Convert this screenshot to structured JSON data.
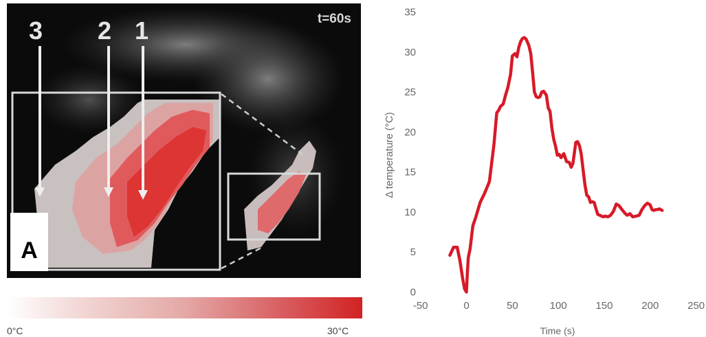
{
  "thermal": {
    "time_label": "t=60s",
    "point_labels": [
      "3",
      "2",
      "1"
    ],
    "panel_letter": "A"
  },
  "colorscale": {
    "min_label": "0°C",
    "max_label": "30°C",
    "color_low": "#ffffff",
    "color_high": "#d32222"
  },
  "chart_data": {
    "type": "line",
    "title": "",
    "xlabel": "Time (s)",
    "ylabel": "Δ temperature (°C)",
    "xlim": [
      -50,
      250
    ],
    "ylim": [
      0,
      35
    ],
    "xticks": [
      "-50",
      "0",
      "50",
      "100",
      "150",
      "200",
      "250"
    ],
    "yticks": [
      "0",
      "5",
      "10",
      "15",
      "20",
      "25",
      "30",
      "35"
    ],
    "grid": false,
    "line_color": "#d71a28",
    "series": [
      {
        "x": [
          -18,
          -14,
          -10,
          -7,
          -4,
          -2,
          0,
          1,
          2,
          4,
          7,
          10,
          15,
          20,
          25,
          30,
          33,
          35,
          37,
          40,
          43,
          45,
          48,
          50,
          53,
          55,
          57,
          59,
          61,
          63,
          65,
          68,
          70,
          72,
          74,
          76,
          78,
          80,
          82,
          84,
          87,
          89,
          91,
          93,
          95,
          97,
          99,
          101,
          103,
          106,
          109,
          112,
          114,
          116,
          119,
          121,
          123,
          125,
          127,
          129,
          131,
          133,
          135,
          137,
          139,
          141,
          143,
          145,
          147,
          149,
          151,
          154,
          157,
          160,
          163,
          166,
          170,
          173,
          175,
          178,
          181,
          185,
          188,
          191,
          194,
          197,
          200,
          202,
          204,
          206,
          208,
          210,
          213
        ],
        "y": [
          4.6,
          5.6,
          5.6,
          3.9,
          1.6,
          0.4,
          0.0,
          2.3,
          4.3,
          5.4,
          8.3,
          9.3,
          11.2,
          12.4,
          13.8,
          18.5,
          22.4,
          22.7,
          23.2,
          23.5,
          24.8,
          25.5,
          27.2,
          29.5,
          29.8,
          29.4,
          30.6,
          31.3,
          31.7,
          31.8,
          31.6,
          30.8,
          29.8,
          27.5,
          25.0,
          24.4,
          24.3,
          24.4,
          25.0,
          25.1,
          24.6,
          23.0,
          22.6,
          20.5,
          19.1,
          18.2,
          17.1,
          17.2,
          16.8,
          17.3,
          16.3,
          16.2,
          15.6,
          16.1,
          18.7,
          18.8,
          18.3,
          17.2,
          15.3,
          13.4,
          12.1,
          11.9,
          11.2,
          11.3,
          11.2,
          10.4,
          9.7,
          9.6,
          9.5,
          9.4,
          9.5,
          9.4,
          9.6,
          10.1,
          11.0,
          10.8,
          10.2,
          9.8,
          9.6,
          9.8,
          9.4,
          9.5,
          9.6,
          10.3,
          10.8,
          11.1,
          10.9,
          10.3,
          10.2,
          10.3,
          10.3,
          10.4,
          10.2
        ]
      }
    ]
  }
}
